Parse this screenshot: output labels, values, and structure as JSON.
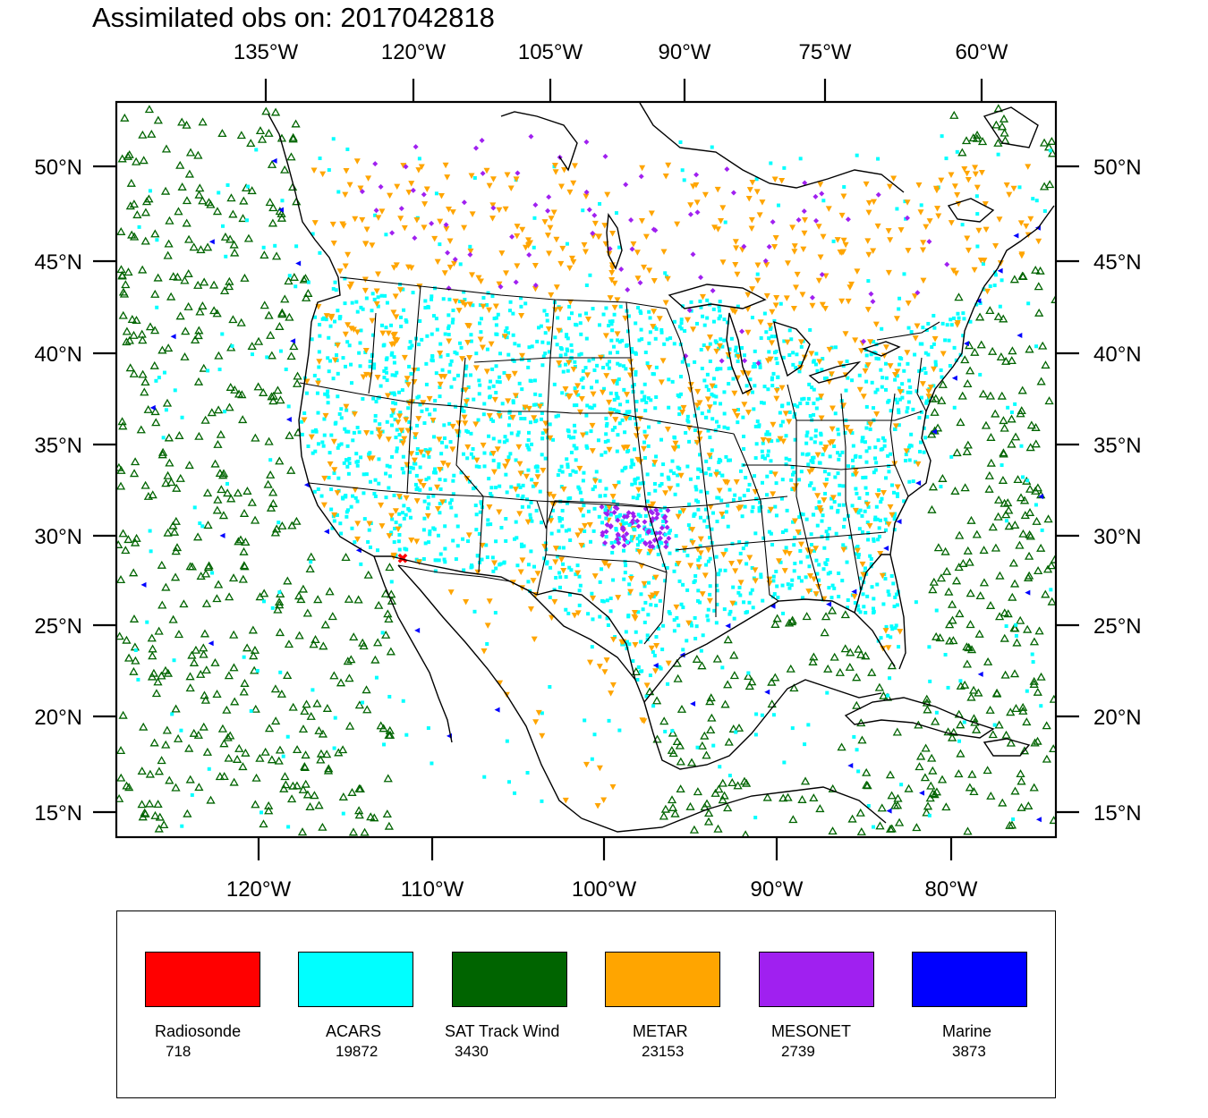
{
  "title": "Assimilated obs on: 2017042818",
  "map": {
    "projection": "Lambert conformal conic",
    "top_longitude_labels": [
      "135°W",
      "120°W",
      "105°W",
      "90°W",
      "75°W",
      "60°W"
    ],
    "bottom_longitude_labels": [
      "120°W",
      "110°W",
      "100°W",
      "90°W",
      "80°W"
    ],
    "latitude_labels": [
      "50°N",
      "45°N",
      "40°N",
      "35°N",
      "30°N",
      "25°N",
      "20°N",
      "15°N"
    ]
  },
  "legend": [
    {
      "name": "Radiosonde",
      "count": "718",
      "color": "#ff0000",
      "marker": "x-icon"
    },
    {
      "name": "ACARS",
      "count": "19872",
      "color": "#00ffff",
      "marker": "square-icon"
    },
    {
      "name": "SAT Track Wind",
      "count": "3430",
      "color": "#006400",
      "marker": "triangle-up-icon"
    },
    {
      "name": "METAR",
      "count": "23153",
      "color": "#ffa500",
      "marker": "triangle-down-icon"
    },
    {
      "name": "MESONET",
      "count": "2739",
      "color": "#a020f0",
      "marker": "diamond-icon"
    },
    {
      "name": "Marine",
      "count": "3873",
      "color": "#0000ff",
      "marker": "triangle-left-icon"
    }
  ]
}
